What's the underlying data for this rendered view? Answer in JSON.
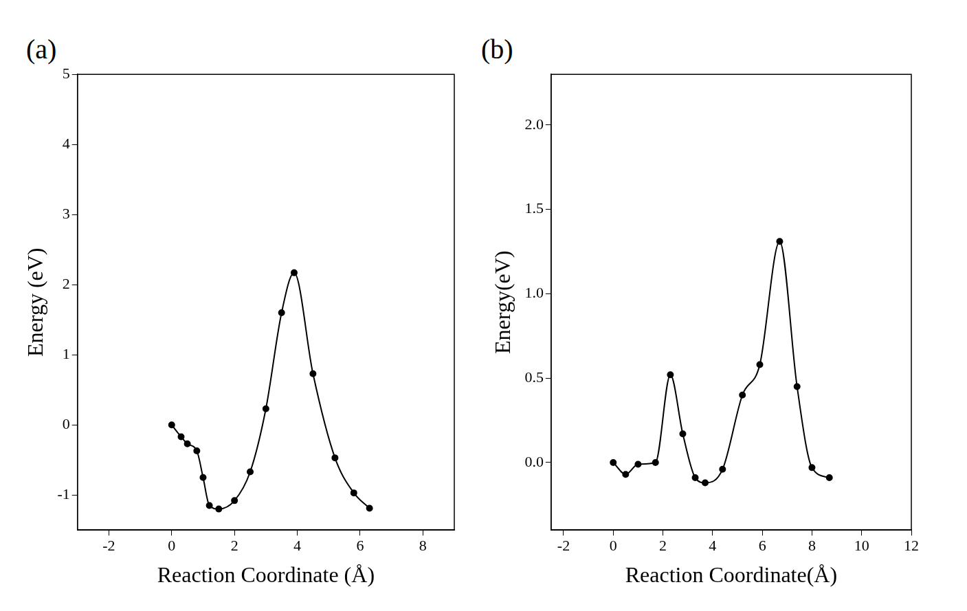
{
  "chart_data": [
    {
      "type": "line",
      "title": "(a)",
      "x_label": "Reaction Coordinate (Å)",
      "y_label": "Energy (eV)",
      "x": [
        0,
        0.3,
        0.5,
        0.8,
        1.0,
        1.2,
        1.5,
        2.0,
        2.5,
        3.0,
        3.5,
        3.9,
        4.5,
        5.2,
        5.8,
        6.3
      ],
      "values": [
        0,
        -0.17,
        -0.27,
        -0.37,
        -0.75,
        -1.15,
        -1.2,
        -1.08,
        -0.67,
        0.23,
        1.6,
        2.17,
        0.73,
        -0.47,
        -0.97,
        -1.19
      ],
      "color": "#000000",
      "marker": "circle",
      "line_style": "solid",
      "xlim": [
        -3,
        9
      ],
      "xticks": [
        -2,
        0,
        2,
        4,
        6,
        8
      ],
      "ylim": [
        -1.5,
        5
      ],
      "yticks": [
        -1,
        0,
        1,
        2,
        3,
        4,
        5
      ],
      "grid": false
    },
    {
      "type": "line",
      "title": "(b)",
      "x_label": "Reaction Coordinate(Å)",
      "y_label": "Energy(eV)",
      "x": [
        0,
        0.5,
        1.0,
        1.7,
        2.3,
        2.8,
        3.3,
        3.7,
        4.4,
        5.2,
        5.9,
        6.7,
        7.4,
        8.0,
        8.7
      ],
      "values": [
        0,
        -0.07,
        -0.01,
        0.0,
        0.52,
        0.17,
        -0.09,
        -0.12,
        -0.04,
        0.4,
        0.58,
        1.31,
        0.45,
        -0.03,
        -0.09
      ],
      "color": "#000000",
      "marker": "circle",
      "line_style": "solid",
      "xlim": [
        -2.5,
        12
      ],
      "xticks": [
        -2,
        0,
        2,
        4,
        6,
        8,
        10,
        12
      ],
      "ylim": [
        -0.4,
        2.3
      ],
      "yticks": [
        {
          "value": 0,
          "label": "0.0"
        },
        {
          "value": 0.5,
          "label": "0.5"
        },
        {
          "value": 1,
          "label": "1.0"
        },
        {
          "value": 1.5,
          "label": "1.5"
        },
        {
          "value": 2,
          "label": "2.0"
        }
      ],
      "grid": false
    }
  ]
}
